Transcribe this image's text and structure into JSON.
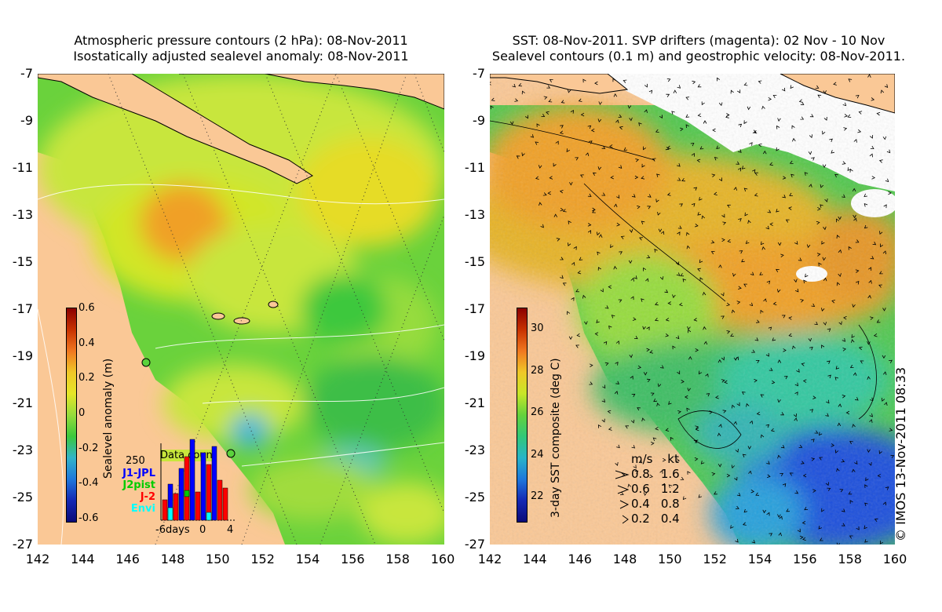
{
  "left_panel": {
    "title_line1": "Atmospheric pressure contours (2 hPa): 08-Nov-2011",
    "title_line2": "Isostatically adjusted sealevel anomaly: 08-Nov-2011",
    "y_ticks": [
      "-7",
      "-9",
      "-11",
      "-13",
      "-15",
      "-17",
      "-19",
      "-21",
      "-23",
      "-25",
      "-27"
    ],
    "x_ticks": [
      "142",
      "144",
      "146",
      "148",
      "150",
      "152",
      "154",
      "156",
      "158",
      "160"
    ],
    "colorbar": {
      "label": "Sealevel anomaly (m)",
      "ticks": [
        "0.6",
        "0.4",
        "0.2",
        "0",
        "-0.2",
        "-0.4",
        "-0.6"
      ]
    },
    "histogram": {
      "title": "Data count",
      "y_max_label": "250",
      "x_labels": [
        "-6days",
        "0",
        "4"
      ],
      "legend": [
        {
          "label": "J1-JPL",
          "color": "#0000ff"
        },
        {
          "label": "J2pist",
          "color": "#00cc00"
        },
        {
          "label": "J-2",
          "color": "#ff0000"
        },
        {
          "label": "Envi",
          "color": "#00ffff"
        }
      ]
    }
  },
  "right_panel": {
    "title_line1": "SST: 08-Nov-2011. SVP drifters (magenta): 02 Nov - 10 Nov",
    "title_line2": "Sealevel contours (0.1 m) and geostrophic velocity: 08-Nov-2011.",
    "y_ticks": [
      "-7",
      "-9",
      "-11",
      "-13",
      "-15",
      "-17",
      "-19",
      "-21",
      "-23",
      "-25",
      "-27"
    ],
    "x_ticks": [
      "142",
      "144",
      "146",
      "148",
      "150",
      "152",
      "154",
      "156",
      "158",
      "160"
    ],
    "colorbar": {
      "label": "3-day SST composite (deg C)",
      "ticks": [
        "30",
        "28",
        "26",
        "24",
        "22"
      ]
    },
    "velocity_legend": {
      "header_ms": "m/s",
      "header_kt": "kt",
      "rows": [
        {
          "ms": "0.8",
          "kt": "1.6"
        },
        {
          "ms": "0.6",
          "kt": "1.2"
        },
        {
          "ms": "0.4",
          "kt": "0.8"
        },
        {
          "ms": "0.2",
          "kt": "0.4"
        }
      ]
    }
  },
  "copyright": "© IMOS 13-Nov-2011 08:33",
  "colors": {
    "land": "#fac896",
    "ocean_green": "#5ad23c",
    "ocean_yellow": "#c8e63c",
    "ocean_orange": "#f0a028",
    "sst_blue": "#1e50dc",
    "sst_teal": "#32c8a0"
  }
}
